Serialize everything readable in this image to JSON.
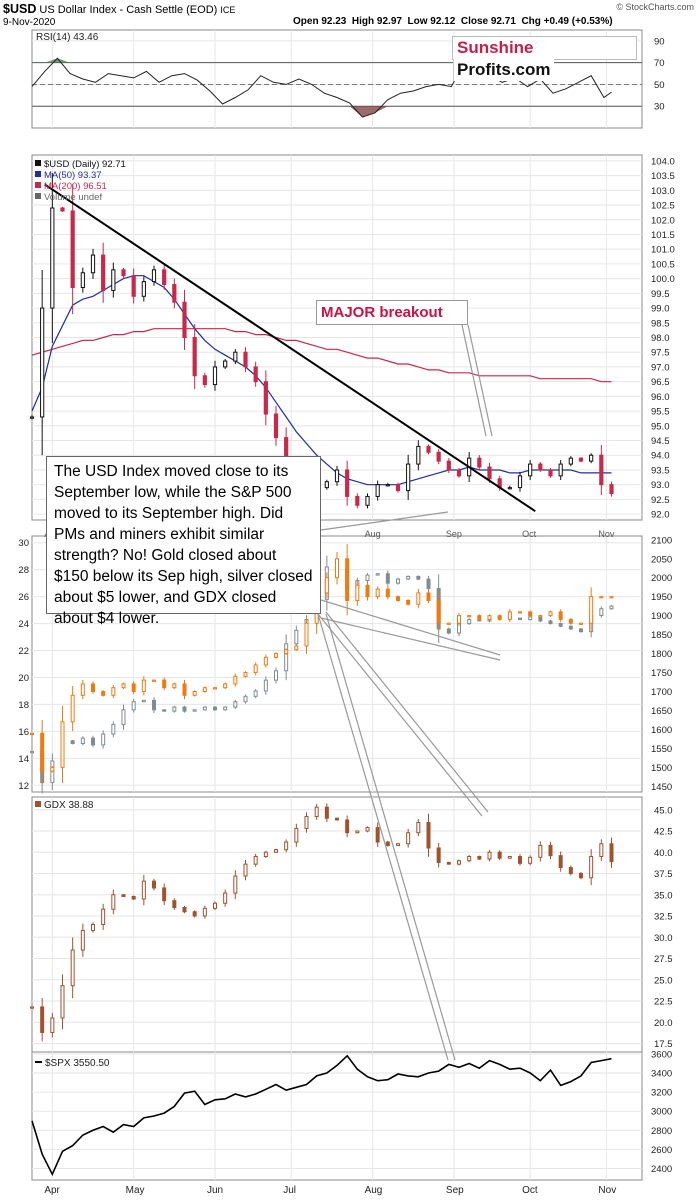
{
  "header": {
    "symbol": "$USD",
    "name": "US Dollar Index - Cash Settle (EOD)",
    "exchange": "ICE",
    "date": "9-Nov-2020",
    "ohlc": "Open 92.23  High 92.97  Low 92.12  Close 92.71  Chg +0.49 (+0.53%)",
    "credit": "© StockCharts.com"
  },
  "logo": {
    "part1": "Sunshine",
    "part2": "Profits.com"
  },
  "annotations": {
    "breakout": "MAJOR breakout",
    "callout": "The USD Index moved close to its September low, while the S&P 500 moved to its September high. Did PMs and miners exhibit similar strength? No! Gold closed about $150 below its Sep high, silver closed about $5 lower, and GDX closed about $4 lower."
  },
  "colors": {
    "up": "#111111",
    "down": "#c8284a",
    "ma50": "#1f2f9a",
    "ma200": "#c8284a",
    "gold": "#f07a10",
    "silver": "#7f8c95",
    "gdx": "#a0522d",
    "spx": "#000000",
    "rsi_fill_hi": "#5a8a5a",
    "rsi_fill_lo": "#8c5050",
    "grid": "#e6e6e6"
  },
  "x_months": [
    "Apr",
    "May",
    "Jun",
    "Jul",
    "Aug",
    "Sep",
    "Oct",
    "Nov"
  ],
  "chart_data": [
    {
      "type": "line",
      "name": "rsi",
      "legend": "RSI(14) 43.46",
      "ylim": [
        10,
        100
      ],
      "yticks": [
        30,
        50,
        70,
        90
      ],
      "levels": [
        30,
        70
      ],
      "x": [
        0,
        5,
        10,
        15,
        20,
        25,
        30,
        35,
        40,
        45,
        50,
        55,
        60,
        65,
        70,
        75,
        80,
        85,
        90,
        95,
        100,
        105,
        110,
        115,
        120,
        125,
        130,
        135,
        140,
        145,
        150,
        155,
        160,
        165,
        170,
        175,
        180,
        185,
        190,
        195,
        200,
        205,
        210,
        215,
        220,
        225,
        228
      ],
      "y": [
        48,
        62,
        74,
        60,
        55,
        52,
        60,
        58,
        56,
        62,
        52,
        58,
        60,
        54,
        44,
        32,
        38,
        45,
        58,
        52,
        50,
        55,
        50,
        42,
        38,
        33,
        20,
        24,
        36,
        42,
        44,
        48,
        50,
        48,
        70,
        74,
        58,
        52,
        56,
        48,
        55,
        42,
        46,
        52,
        58,
        38,
        43
      ]
    },
    {
      "type": "ohlc",
      "name": "usd",
      "legend": [
        "$USD (Daily) 92.71",
        "MA(50) 93.37",
        "MA(200) 96.51",
        "Volume undef"
      ],
      "ylim": [
        91.8,
        104.2
      ],
      "yticks": [
        92.0,
        92.5,
        93.0,
        93.5,
        94.0,
        94.5,
        95.0,
        95.5,
        96.0,
        96.5,
        97.0,
        97.5,
        98.0,
        98.5,
        99.0,
        99.5,
        100.0,
        100.5,
        101.0,
        101.5,
        102.0,
        102.5,
        103.0,
        103.5,
        104.0
      ],
      "x": [
        0,
        4,
        8,
        12,
        16,
        20,
        24,
        28,
        32,
        36,
        40,
        44,
        48,
        52,
        56,
        60,
        64,
        68,
        72,
        76,
        80,
        84,
        88,
        92,
        96,
        100,
        104,
        108,
        112,
        116,
        120,
        124,
        128,
        132,
        136,
        140,
        144,
        148,
        152,
        156,
        160,
        164,
        168,
        172,
        176,
        180,
        184,
        188,
        192,
        196,
        200,
        204,
        208,
        212,
        216,
        220,
        224,
        228
      ],
      "close": [
        95.3,
        99.0,
        102.4,
        102.3,
        99.7,
        100.2,
        100.8,
        99.6,
        100.3,
        100.1,
        99.4,
        99.9,
        100.3,
        99.8,
        99.2,
        98.0,
        96.7,
        96.4,
        97.0,
        97.2,
        97.5,
        97.0,
        96.5,
        95.4,
        94.6,
        93.6,
        93.0,
        93.4,
        92.9,
        93.1,
        93.5,
        92.6,
        92.3,
        92.6,
        93.0,
        93.0,
        92.8,
        93.7,
        94.3,
        94.1,
        93.8,
        93.5,
        93.3,
        93.9,
        93.6,
        93.2,
        92.9,
        92.9,
        93.3,
        93.7,
        93.5,
        93.3,
        93.7,
        93.9,
        93.8,
        94.0,
        93.0,
        92.7
      ],
      "ma50": [
        95.5,
        96.3,
        97.7,
        98.4,
        99.1,
        99.3,
        99.4,
        99.6,
        99.8,
        100.0,
        100.1,
        100.1,
        99.9,
        99.7,
        99.3,
        98.8,
        98.3,
        97.9,
        97.6,
        97.4,
        97.2,
        97.0,
        96.7,
        96.3,
        95.8,
        95.3,
        94.8,
        94.4,
        94.0,
        93.7,
        93.4,
        93.2,
        93.1,
        93.0,
        93.0,
        93.0,
        93.0,
        93.1,
        93.2,
        93.3,
        93.4,
        93.5,
        93.5,
        93.6,
        93.5,
        93.5,
        93.5,
        93.4,
        93.4,
        93.5,
        93.5,
        93.5,
        93.5,
        93.5,
        93.4,
        93.4,
        93.4,
        93.4
      ],
      "ma200": [
        97.4,
        97.5,
        97.6,
        97.7,
        97.8,
        97.9,
        97.9,
        98.0,
        98.1,
        98.1,
        98.2,
        98.2,
        98.3,
        98.3,
        98.3,
        98.3,
        98.3,
        98.3,
        98.3,
        98.3,
        98.2,
        98.2,
        98.1,
        98.1,
        98.0,
        97.9,
        97.9,
        97.8,
        97.7,
        97.6,
        97.6,
        97.5,
        97.4,
        97.3,
        97.3,
        97.2,
        97.1,
        97.1,
        97.0,
        96.9,
        96.9,
        96.8,
        96.8,
        96.8,
        96.7,
        96.7,
        96.7,
        96.7,
        96.7,
        96.7,
        96.6,
        96.6,
        96.6,
        96.6,
        96.6,
        96.6,
        96.5,
        96.5
      ],
      "trendline": {
        "x": [
          5,
          198
        ],
        "y": [
          103.2,
          92.1
        ]
      }
    },
    {
      "type": "ohlc",
      "name": "gold_silver",
      "left_ylim": [
        11.5,
        30.5
      ],
      "left_yticks": [
        12,
        14,
        16,
        18,
        20,
        22,
        24,
        26,
        28,
        30
      ],
      "right_ylim": [
        1435,
        2110
      ],
      "right_yticks": [
        1450,
        1500,
        1550,
        1600,
        1650,
        1700,
        1750,
        1800,
        1850,
        1900,
        1950,
        2000,
        2050,
        2100
      ],
      "x": [
        0,
        4,
        8,
        12,
        16,
        20,
        24,
        28,
        32,
        36,
        40,
        44,
        48,
        52,
        56,
        60,
        64,
        68,
        72,
        76,
        80,
        84,
        88,
        92,
        96,
        100,
        104,
        108,
        112,
        116,
        120,
        124,
        128,
        132,
        136,
        140,
        144,
        148,
        152,
        156,
        160,
        164,
        168,
        172,
        176,
        180,
        184,
        188,
        192,
        196,
        200,
        204,
        208,
        212,
        216,
        220,
        224,
        228
      ],
      "gold": [
        1590,
        1490,
        1500,
        1620,
        1690,
        1720,
        1700,
        1690,
        1710,
        1720,
        1700,
        1730,
        1730,
        1710,
        1720,
        1690,
        1700,
        1710,
        1710,
        1720,
        1740,
        1750,
        1770,
        1790,
        1800,
        1810,
        1820,
        1880,
        1960,
        2000,
        2050,
        1940,
        1980,
        1950,
        1970,
        1950,
        1940,
        1930,
        1960,
        1940,
        1880,
        1880,
        1900,
        1900,
        1890,
        1900,
        1890,
        1910,
        1910,
        1900,
        1900,
        1910,
        1890,
        1880,
        1880,
        1950,
        1950,
        1950
      ],
      "silver": [
        14.5,
        12.2,
        13.8,
        15.3,
        15.1,
        15.5,
        15.0,
        15.8,
        16.5,
        17.6,
        18.2,
        18.3,
        17.6,
        17.5,
        17.8,
        17.5,
        17.6,
        17.8,
        17.6,
        17.8,
        18.2,
        18.6,
        19.0,
        19.8,
        20.5,
        22.5,
        23.5,
        24.3,
        25.8,
        28.2,
        28.0,
        26.6,
        27.2,
        27.6,
        27.7,
        27.0,
        27.3,
        27.5,
        27.3,
        26.6,
        23.6,
        23.3,
        24.0,
        24.3,
        24.2,
        24.5,
        24.5,
        24.4,
        24.3,
        24.5,
        24.2,
        24.0,
        23.8,
        23.6,
        23.4,
        24.6,
        25.1,
        25.3
      ]
    },
    {
      "type": "ohlc",
      "name": "gdx",
      "legend": "GDX 38.88",
      "ylim": [
        16.5,
        46.5
      ],
      "yticks": [
        17.5,
        20.0,
        22.5,
        25.0,
        27.5,
        30.0,
        32.5,
        35.0,
        37.5,
        40.0,
        42.5,
        45.0
      ],
      "x": [
        0,
        4,
        8,
        12,
        16,
        20,
        24,
        28,
        32,
        36,
        40,
        44,
        48,
        52,
        56,
        60,
        64,
        68,
        72,
        76,
        80,
        84,
        88,
        92,
        96,
        100,
        104,
        108,
        112,
        116,
        120,
        124,
        128,
        132,
        136,
        140,
        144,
        148,
        152,
        156,
        160,
        164,
        168,
        172,
        176,
        180,
        184,
        188,
        192,
        196,
        200,
        204,
        208,
        212,
        216,
        220,
        224,
        228
      ],
      "close": [
        21.8,
        18.8,
        20.5,
        24.3,
        28.5,
        30.8,
        31.5,
        33.3,
        35.0,
        34.8,
        34.5,
        36.6,
        35.8,
        34.3,
        33.5,
        33.0,
        32.5,
        33.4,
        34.0,
        35.2,
        37.2,
        38.6,
        39.5,
        40.0,
        40.3,
        41.2,
        42.8,
        44.2,
        45.3,
        44.0,
        43.8,
        42.3,
        42.5,
        42.9,
        41.2,
        40.8,
        41.0,
        42.3,
        43.5,
        40.5,
        38.8,
        38.6,
        39.0,
        39.5,
        39.2,
        40.0,
        39.3,
        39.5,
        38.7,
        39.4,
        40.8,
        39.6,
        38.2,
        37.5,
        37.0,
        39.5,
        41.0,
        38.9
      ]
    },
    {
      "type": "line",
      "name": "spx",
      "legend": "$SPX 3550.50",
      "ylim": [
        2280,
        3620
      ],
      "yticks": [
        2400,
        2600,
        2800,
        3000,
        3200,
        3400,
        3600
      ],
      "x": [
        0,
        4,
        8,
        12,
        16,
        20,
        24,
        28,
        32,
        36,
        40,
        44,
        48,
        52,
        56,
        60,
        64,
        68,
        72,
        76,
        80,
        84,
        88,
        92,
        96,
        100,
        104,
        108,
        112,
        116,
        120,
        124,
        128,
        132,
        136,
        140,
        144,
        148,
        152,
        156,
        160,
        164,
        168,
        172,
        176,
        180,
        184,
        188,
        192,
        196,
        200,
        204,
        208,
        212,
        216,
        220,
        224,
        228
      ],
      "y": [
        2900,
        2550,
        2340,
        2580,
        2640,
        2750,
        2800,
        2840,
        2780,
        2860,
        2840,
        2930,
        2950,
        2980,
        3050,
        3190,
        3210,
        3070,
        3120,
        3130,
        3180,
        3150,
        3180,
        3230,
        3280,
        3220,
        3250,
        3280,
        3370,
        3400,
        3480,
        3580,
        3440,
        3360,
        3320,
        3330,
        3390,
        3370,
        3360,
        3400,
        3420,
        3490,
        3460,
        3500,
        3450,
        3530,
        3490,
        3440,
        3450,
        3400,
        3320,
        3430,
        3270,
        3310,
        3370,
        3510,
        3530,
        3550
      ]
    }
  ]
}
